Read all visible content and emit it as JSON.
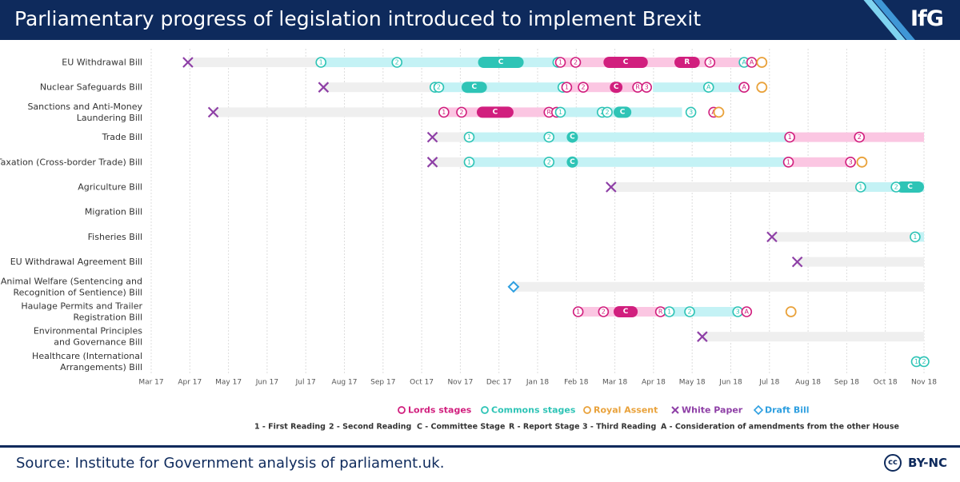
{
  "title": "Parliamentary progress of legislation introduced to implement Brexit",
  "logo": "IfG",
  "source": "Source: Institute for Government analysis of parliament.uk.",
  "license": "BY-NC",
  "license_icon": "cc",
  "colors": {
    "lords": "#d11f7e",
    "lords_bar": "#fbc6e2",
    "commons": "#2ec4b6",
    "commons_bar": "#c4f2f5",
    "royal_assent": "#e9a23b",
    "white_paper": "#8e3fa6",
    "draft_bill": "#2e9fe0",
    "background_bar": "#efefef",
    "header": "#0e2a5c"
  },
  "chart_data": {
    "type": "timeline",
    "x_axis": {
      "ticks": [
        "Mar 17",
        "Apr 17",
        "May 17",
        "Jun 17",
        "Jul 17",
        "Aug 17",
        "Sep 17",
        "Oct 17",
        "Nov 17",
        "Dec 17",
        "Jan 18",
        "Feb 18",
        "Mar 18",
        "Apr 18",
        "May 18",
        "Jun 18",
        "Jul 18",
        "Aug 18",
        "Sep 18",
        "Oct 18",
        "Nov 18"
      ],
      "range": [
        "2017-03-01",
        "2018-11-01"
      ],
      "grid": true
    },
    "legend": {
      "placement": "bottom",
      "items": [
        {
          "label": "Lords stages",
          "marker": "circle",
          "color": "#d11f7e"
        },
        {
          "label": "Commons stages",
          "marker": "circle",
          "color": "#2ec4b6"
        },
        {
          "label": "Royal Assent",
          "marker": "circle",
          "color": "#e9a23b"
        },
        {
          "label": "White Paper",
          "marker": "cross",
          "color": "#8e3fa6"
        },
        {
          "label": "Draft Bill",
          "marker": "diamond",
          "color": "#2e9fe0"
        }
      ],
      "key": [
        "1 - First Reading",
        "2 - Second Reading",
        "C - Committee Stage",
        "R - Report Stage",
        "3 - Third Reading",
        "A - Consideration of amendments from the other House"
      ]
    },
    "bills": [
      {
        "label": [
          "EU Withdrawal Bill"
        ],
        "white_paper": "2017-03-30",
        "grey": [
          "2017-03-30",
          "2017-07-13"
        ],
        "commons_bar": [
          "2017-07-13",
          "2018-01-17"
        ],
        "lords_bar": [
          "2018-01-18",
          "2018-06-20"
        ],
        "committee": [
          {
            "house": "commons",
            "start": "2017-11-14",
            "end": "2017-12-20"
          },
          {
            "house": "lords",
            "start": "2018-02-21",
            "end": "2018-03-28"
          },
          {
            "house": "lords",
            "start": "2018-04-18",
            "end": "2018-05-08",
            "label": "R"
          }
        ],
        "stages": [
          {
            "house": "commons",
            "label": "1",
            "date": "2017-07-13"
          },
          {
            "house": "commons",
            "label": "2",
            "date": "2017-09-11"
          },
          {
            "house": "commons",
            "label": "3",
            "date": "2018-01-16"
          },
          {
            "house": "lords",
            "label": "1",
            "date": "2018-01-18"
          },
          {
            "house": "lords",
            "label": "2",
            "date": "2018-01-30"
          },
          {
            "house": "lords",
            "label": "3",
            "date": "2018-05-16"
          },
          {
            "house": "commons",
            "label": "A",
            "date": "2018-06-12"
          },
          {
            "house": "lords",
            "label": "A",
            "date": "2018-06-18"
          }
        ],
        "royal_assent": "2018-06-26"
      },
      {
        "label": [
          "Nuclear Safeguards Bill"
        ],
        "white_paper": "2017-07-15",
        "grey": [
          "2017-07-15",
          "2017-10-11"
        ],
        "commons_bar": [
          "2017-10-11",
          "2018-01-23"
        ],
        "lords_bar": [
          "2018-01-23",
          "2018-03-20"
        ],
        "commons_bar2": [
          "2018-04-01",
          "2018-06-10"
        ],
        "committee": [
          {
            "house": "commons",
            "start": "2017-11-01",
            "end": "2017-11-21"
          },
          {
            "house": "lords",
            "start": "2018-02-26",
            "end": "2018-03-08"
          }
        ],
        "stages": [
          {
            "house": "commons",
            "label": "1",
            "date": "2017-10-11"
          },
          {
            "house": "commons",
            "label": "2",
            "date": "2017-10-14"
          },
          {
            "house": "commons",
            "label": "3",
            "date": "2018-01-20"
          },
          {
            "house": "lords",
            "label": "1",
            "date": "2018-01-23"
          },
          {
            "house": "lords",
            "label": "2",
            "date": "2018-02-05"
          },
          {
            "house": "lords",
            "label": "R",
            "date": "2018-03-20"
          },
          {
            "house": "lords",
            "label": "3",
            "date": "2018-03-27"
          },
          {
            "house": "commons",
            "label": "A",
            "date": "2018-05-15"
          },
          {
            "house": "lords",
            "label": "A",
            "date": "2018-06-12"
          }
        ],
        "royal_assent": "2018-06-26"
      },
      {
        "label": [
          "Sanctions and Anti-Money",
          "Laundering Bill"
        ],
        "white_paper": "2017-04-19",
        "grey": [
          "2017-04-19",
          "2017-10-18"
        ],
        "lords_bar": [
          "2017-10-18",
          "2018-01-09"
        ],
        "commons_bar": [
          "2018-01-17",
          "2018-04-24"
        ],
        "committee": [
          {
            "house": "lords",
            "start": "2017-11-13",
            "end": "2017-12-12"
          },
          {
            "house": "commons",
            "start": "2018-03-01",
            "end": "2018-03-15"
          }
        ],
        "stages": [
          {
            "house": "lords",
            "label": "1",
            "date": "2017-10-18"
          },
          {
            "house": "lords",
            "label": "2",
            "date": "2017-11-01"
          },
          {
            "house": "lords",
            "label": "R",
            "date": "2018-01-09"
          },
          {
            "house": "lords",
            "label": "3",
            "date": "2018-01-15"
          },
          {
            "house": "commons",
            "label": "1",
            "date": "2018-01-18"
          },
          {
            "house": "commons",
            "label": "2",
            "date": "2018-02-20"
          },
          {
            "house": "commons",
            "label": "2",
            "date": "2018-02-24"
          },
          {
            "house": "commons",
            "label": "3",
            "date": "2018-05-01"
          },
          {
            "house": "lords",
            "label": "A",
            "date": "2018-05-19"
          }
        ],
        "royal_assent": "2018-05-23"
      },
      {
        "label": [
          "Trade Bill"
        ],
        "white_paper": "2017-10-09",
        "grey": [
          "2017-10-09",
          "2017-11-07"
        ],
        "commons_bar": [
          "2017-11-07",
          "2018-07-17"
        ],
        "lords_bar": [
          "2018-07-18",
          "2018-11-01"
        ],
        "committee": [
          {
            "house": "commons",
            "start": "2018-01-23",
            "end": "2018-01-31"
          }
        ],
        "stages": [
          {
            "house": "commons",
            "label": "1",
            "date": "2017-11-07"
          },
          {
            "house": "commons",
            "label": "2",
            "date": "2018-01-09"
          },
          {
            "house": "lords",
            "label": "1",
            "date": "2018-07-18"
          },
          {
            "house": "lords",
            "label": "2",
            "date": "2018-09-11"
          }
        ]
      },
      {
        "label": [
          "Taxation (Cross-border Trade) Bill"
        ],
        "white_paper": "2017-10-09",
        "grey": [
          "2017-10-09",
          "2017-11-07"
        ],
        "commons_bar": [
          "2017-11-07",
          "2018-07-17"
        ],
        "lords_bar": [
          "2018-07-18",
          "2018-09-04"
        ],
        "committee": [
          {
            "house": "commons",
            "start": "2018-01-23",
            "end": "2018-01-31"
          }
        ],
        "stages": [
          {
            "house": "commons",
            "label": "1",
            "date": "2017-11-07"
          },
          {
            "house": "commons",
            "label": "2",
            "date": "2018-01-09"
          },
          {
            "house": "lords",
            "label": "1",
            "date": "2018-07-17"
          },
          {
            "house": "lords",
            "label": "3",
            "date": "2018-09-04"
          }
        ],
        "royal_assent": "2018-09-13"
      },
      {
        "label": [
          "Agriculture Bill"
        ],
        "white_paper": "2018-02-27",
        "grey": [
          "2018-02-27",
          "2018-09-12"
        ],
        "commons_bar": [
          "2018-09-12",
          "2018-11-01"
        ],
        "committee": [
          {
            "house": "commons",
            "start": "2018-10-10",
            "end": "2018-11-01"
          }
        ],
        "stages": [
          {
            "house": "commons",
            "label": "1",
            "date": "2018-09-12"
          },
          {
            "house": "commons",
            "label": "2",
            "date": "2018-10-10"
          }
        ]
      },
      {
        "label": [
          "Migration Bill"
        ]
      },
      {
        "label": [
          "Fisheries Bill"
        ],
        "white_paper": "2018-07-04",
        "grey": [
          "2018-07-04",
          "2018-10-25"
        ],
        "commons_bar": [
          "2018-10-25",
          "2018-11-01"
        ],
        "stages": [
          {
            "house": "commons",
            "label": "1",
            "date": "2018-10-25"
          }
        ]
      },
      {
        "label": [
          "EU Withdrawal Agreement Bill"
        ],
        "white_paper": "2018-07-24",
        "grey": [
          "2018-07-24",
          "2018-11-01"
        ]
      },
      {
        "label": [
          "Animal Welfare (Sentencing and",
          "Recognition of Sentience) Bill"
        ],
        "draft_bill": "2017-12-12",
        "grey": [
          "2017-12-12",
          "2018-11-01"
        ]
      },
      {
        "label": [
          "Haulage Permits and Trailer",
          "Registration Bill"
        ],
        "lords_bar": [
          "2018-02-01",
          "2018-04-12"
        ],
        "commons_bar": [
          "2018-04-12",
          "2018-06-07"
        ],
        "committee": [
          {
            "house": "lords",
            "start": "2018-03-01",
            "end": "2018-03-20"
          }
        ],
        "stages": [
          {
            "house": "lords",
            "label": "1",
            "date": "2018-02-01"
          },
          {
            "house": "lords",
            "label": "2",
            "date": "2018-02-21"
          },
          {
            "house": "lords",
            "label": "R",
            "date": "2018-04-07"
          },
          {
            "house": "commons",
            "label": "1",
            "date": "2018-04-14"
          },
          {
            "house": "commons",
            "label": "2",
            "date": "2018-04-30"
          },
          {
            "house": "commons",
            "label": "3",
            "date": "2018-06-07"
          },
          {
            "house": "lords",
            "label": "A",
            "date": "2018-06-14"
          }
        ],
        "royal_assent": "2018-07-19"
      },
      {
        "label": [
          "Environmental Principles",
          "and Governance Bill"
        ],
        "white_paper": "2018-05-10",
        "grey": [
          "2018-05-10",
          "2018-11-01"
        ]
      },
      {
        "label": [
          "Healthcare (International",
          "Arrangements) Bill"
        ],
        "commons_bar": [
          "2018-10-26",
          "2018-11-01"
        ],
        "stages": [
          {
            "house": "commons",
            "label": "1",
            "date": "2018-10-26"
          },
          {
            "house": "commons",
            "label": "2",
            "date": "2018-11-01"
          }
        ]
      }
    ]
  }
}
